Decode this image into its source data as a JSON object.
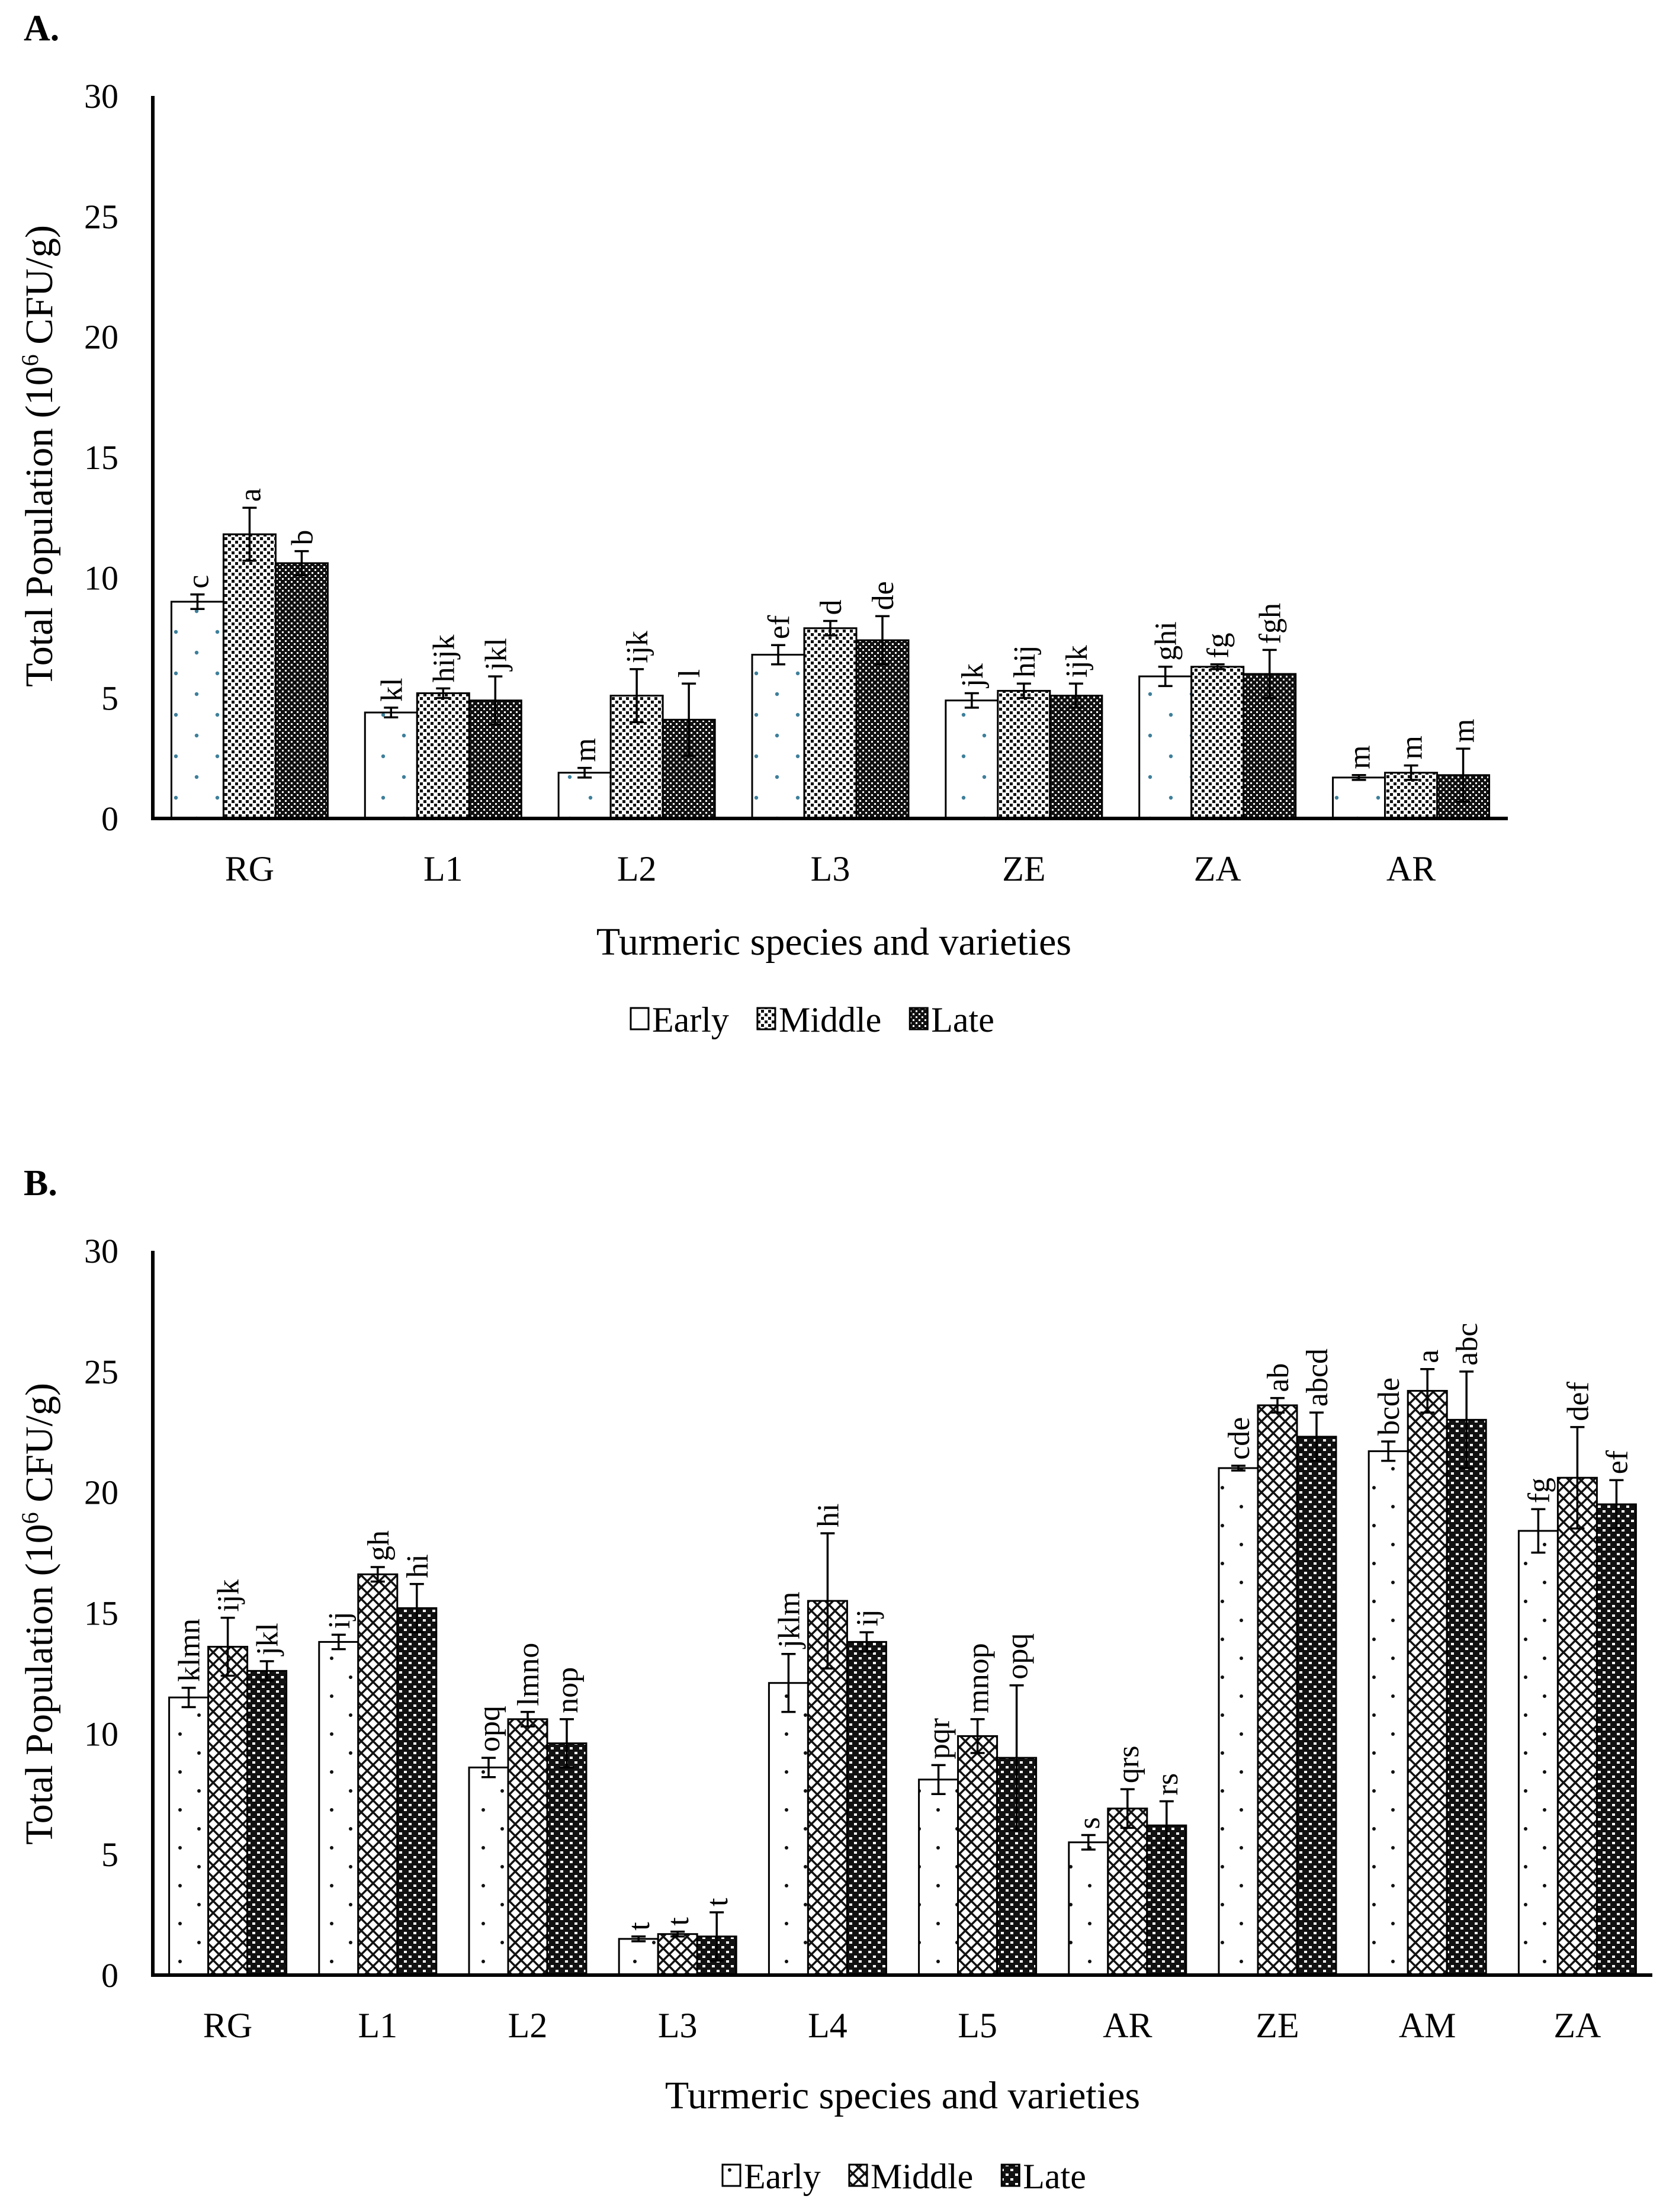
{
  "chart_data": [
    {
      "type": "bar",
      "panel_label": "A.",
      "title": "",
      "xlabel": "Turmeric species and varieties",
      "ylabel": "Total Population (10",
      "ylabel_sup": "6",
      "ylabel_unit": " CFU/g)",
      "ylim": [
        0,
        30
      ],
      "yticks": [
        0,
        5,
        10,
        15,
        20,
        25,
        30
      ],
      "grid": false,
      "legend_position": "bottom-center",
      "categories": [
        "RG",
        "L1",
        "L2",
        "L3",
        "ZE",
        "ZA",
        "AR"
      ],
      "series": [
        {
          "name": "Early",
          "values": [
            9.0,
            4.4,
            1.9,
            6.8,
            4.9,
            5.9,
            1.7
          ],
          "errors": [
            0.3,
            0.2,
            0.2,
            0.4,
            0.3,
            0.4,
            0.1
          ],
          "letters": [
            "c",
            "kl",
            "m",
            "ef",
            "jk",
            "ghi",
            "m"
          ]
        },
        {
          "name": "Middle",
          "values": [
            11.8,
            5.2,
            5.1,
            7.9,
            5.3,
            6.3,
            1.9
          ],
          "errors": [
            1.1,
            0.2,
            1.1,
            0.3,
            0.3,
            0.1,
            0.3
          ],
          "letters": [
            "a",
            "hijk",
            "ijk",
            "d",
            "hij",
            "fg",
            "m"
          ]
        },
        {
          "name": "Late",
          "values": [
            10.6,
            4.9,
            4.1,
            7.4,
            5.1,
            6.0,
            1.8
          ],
          "errors": [
            0.5,
            1.0,
            1.5,
            1.0,
            0.5,
            1.0,
            1.1
          ],
          "letters": [
            "b",
            "jkl",
            "l",
            "de",
            "ijk",
            "fgh",
            "m"
          ]
        }
      ]
    },
    {
      "type": "bar",
      "panel_label": "B.",
      "title": "",
      "xlabel": "Turmeric species and varieties",
      "ylabel": "Total Population (10",
      "ylabel_sup": "6",
      "ylabel_unit": " CFU/g)",
      "ylim": [
        0,
        30
      ],
      "yticks": [
        0,
        5,
        10,
        15,
        20,
        25,
        30
      ],
      "grid": false,
      "legend_position": "bottom-center",
      "categories": [
        "RG",
        "L1",
        "L2",
        "L3",
        "L4",
        "L5",
        "AR",
        "ZE",
        "AM",
        "ZA"
      ],
      "series": [
        {
          "name": "Early",
          "values": [
            11.5,
            13.8,
            8.6,
            1.5,
            12.1,
            8.1,
            5.5,
            21.0,
            21.7,
            18.4
          ],
          "errors": [
            0.4,
            0.3,
            0.4,
            0.1,
            1.2,
            0.6,
            0.3,
            0.1,
            0.4,
            0.9
          ],
          "letters": [
            "klmn",
            "ij",
            "opq",
            "t",
            "jklm",
            "pqr",
            "s",
            "cde",
            "bcde",
            "fg"
          ]
        },
        {
          "name": "Middle",
          "values": [
            13.6,
            16.6,
            10.6,
            1.7,
            15.5,
            9.9,
            6.9,
            23.6,
            24.2,
            20.6
          ],
          "errors": [
            1.2,
            0.3,
            0.3,
            0.1,
            2.8,
            0.7,
            0.8,
            0.3,
            0.9,
            2.1
          ],
          "letters": [
            "ijk",
            "gh",
            "lmno",
            "t",
            "hi",
            "mnop",
            "qrs",
            "ab",
            "a",
            "def"
          ]
        },
        {
          "name": "Late",
          "values": [
            12.6,
            15.2,
            9.6,
            1.6,
            13.8,
            9.0,
            6.2,
            22.3,
            23.0,
            19.5
          ],
          "errors": [
            0.4,
            1.0,
            1.0,
            1.0,
            0.4,
            3.0,
            1.0,
            1.0,
            2.0,
            1.0
          ],
          "letters": [
            "jkl",
            "hi",
            "nop",
            "t",
            "ij",
            "opq",
            "rs",
            "abcd",
            "abc",
            "ef"
          ]
        }
      ]
    }
  ]
}
